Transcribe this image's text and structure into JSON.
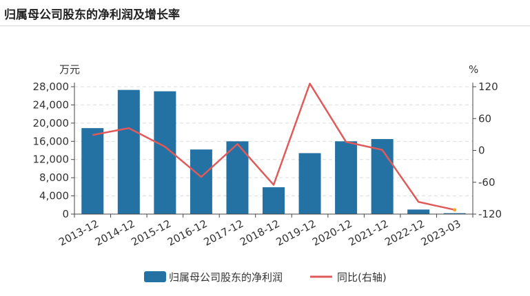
{
  "page": {
    "title": "归属母公司股东的净利润及增长率"
  },
  "chart_data": {
    "type": "bar",
    "categories": [
      "2013-12",
      "2014-12",
      "2015-12",
      "2016-12",
      "2017-12",
      "2018-12",
      "2019-12",
      "2020-12",
      "2021-12",
      "2022-12",
      "2023-03"
    ],
    "left_unit": "万元",
    "right_unit": "%",
    "y_left": {
      "min": 0,
      "max": 28000,
      "ticks": [
        0,
        4000,
        8000,
        12000,
        16000,
        20000,
        24000,
        28000
      ],
      "tick_labels": [
        "0",
        "4,000",
        "8,000",
        "12,000",
        "16,000",
        "20,000",
        "24,000",
        "28,000"
      ]
    },
    "y_right": {
      "min": -120,
      "max": 120,
      "ticks": [
        -120,
        -60,
        0,
        60,
        120
      ],
      "tick_labels": [
        "-120",
        "-60",
        "0",
        "60",
        "120"
      ]
    },
    "grid": true,
    "legend_position": "bottom",
    "series": [
      {
        "name": "归属母公司股东的净利润",
        "type": "bar",
        "axis": "left",
        "color": "#2471a3",
        "values": [
          18900,
          27300,
          27000,
          14200,
          16000,
          5900,
          13400,
          16000,
          16500,
          1000,
          200
        ]
      },
      {
        "name": "同比(右轴)",
        "type": "line",
        "axis": "right",
        "color": "#e05a5a",
        "values": [
          29,
          42,
          7,
          -50,
          12,
          -65,
          126,
          16,
          1,
          -97,
          -112
        ]
      }
    ],
    "last_point_color": "#f5a623"
  }
}
